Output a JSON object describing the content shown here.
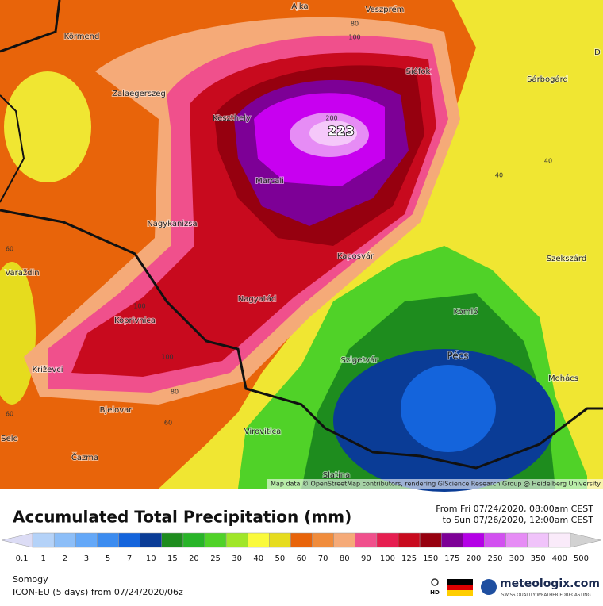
{
  "map": {
    "places": [
      "Ajka",
      "Veszprém",
      "Körmend",
      "Zalaegerszeg",
      "Keszthely",
      "Siófok",
      "Sárbogárd",
      "Marcali",
      "Nagykanizsa",
      "Kaposvár",
      "Szekszárd",
      "Varaždin",
      "Nagyatád",
      "Koprivnica",
      "Komló",
      "Pécs",
      "Szigetvár",
      "Križevci",
      "Mohács",
      "Bjelovar",
      "Virovitica",
      "Čazma",
      "Slatina",
      "Selo",
      "D"
    ],
    "contour_labels": [
      "80",
      "100",
      "200",
      "40",
      "40",
      "60",
      "100",
      "100",
      "80",
      "60",
      "60"
    ],
    "max_label": "223",
    "attribution": "Map data © OpenStreetMap contributors, rendering GIScience Research Group @ Heidelberg University"
  },
  "legend": {
    "title": "Accumulated Total Precipitation (mm)",
    "period_from": "From Fri 07/24/2020, 08:00am CEST",
    "period_to": "to Sun 07/26/2020, 12:00am CEST",
    "classes": [
      {
        "label": "0.1",
        "color": "#dcdcf5"
      },
      {
        "label": "1",
        "color": "#b4d2f8"
      },
      {
        "label": "2",
        "color": "#8cbef8"
      },
      {
        "label": "3",
        "color": "#64a8f8"
      },
      {
        "label": "5",
        "color": "#3c8cf0"
      },
      {
        "label": "7",
        "color": "#1464dc"
      },
      {
        "label": "10",
        "color": "#0a3c96"
      },
      {
        "label": "15",
        "color": "#1e8c1e"
      },
      {
        "label": "20",
        "color": "#28b428"
      },
      {
        "label": "25",
        "color": "#50d228"
      },
      {
        "label": "30",
        "color": "#a0e628"
      },
      {
        "label": "40",
        "color": "#fafa3c"
      },
      {
        "label": "50",
        "color": "#e6dc1e"
      },
      {
        "label": "60",
        "color": "#e8640a"
      },
      {
        "label": "70",
        "color": "#f08c3c"
      },
      {
        "label": "80",
        "color": "#f5aa78"
      },
      {
        "label": "90",
        "color": "#f0508c"
      },
      {
        "label": "100",
        "color": "#e61e50"
      },
      {
        "label": "125",
        "color": "#c80a1e"
      },
      {
        "label": "150",
        "color": "#96000f"
      },
      {
        "label": "175",
        "color": "#7d0096"
      },
      {
        "label": "200",
        "color": "#b400e6"
      },
      {
        "label": "250",
        "color": "#d250f0"
      },
      {
        "label": "300",
        "color": "#e68cf5"
      },
      {
        "label": "350",
        "color": "#f0c3fa"
      },
      {
        "label": "400",
        "color": "#faebfa"
      },
      {
        "label": "500",
        "color": "#d2d2d2"
      }
    ]
  },
  "footer": {
    "region": "Somogy",
    "model": "ICON-EU (5 days) from 07/24/2020/06z",
    "hd": "HD",
    "brand": "meteologix.com",
    "tagline": "SWISS QUALITY WEATHER FORECASTING"
  }
}
